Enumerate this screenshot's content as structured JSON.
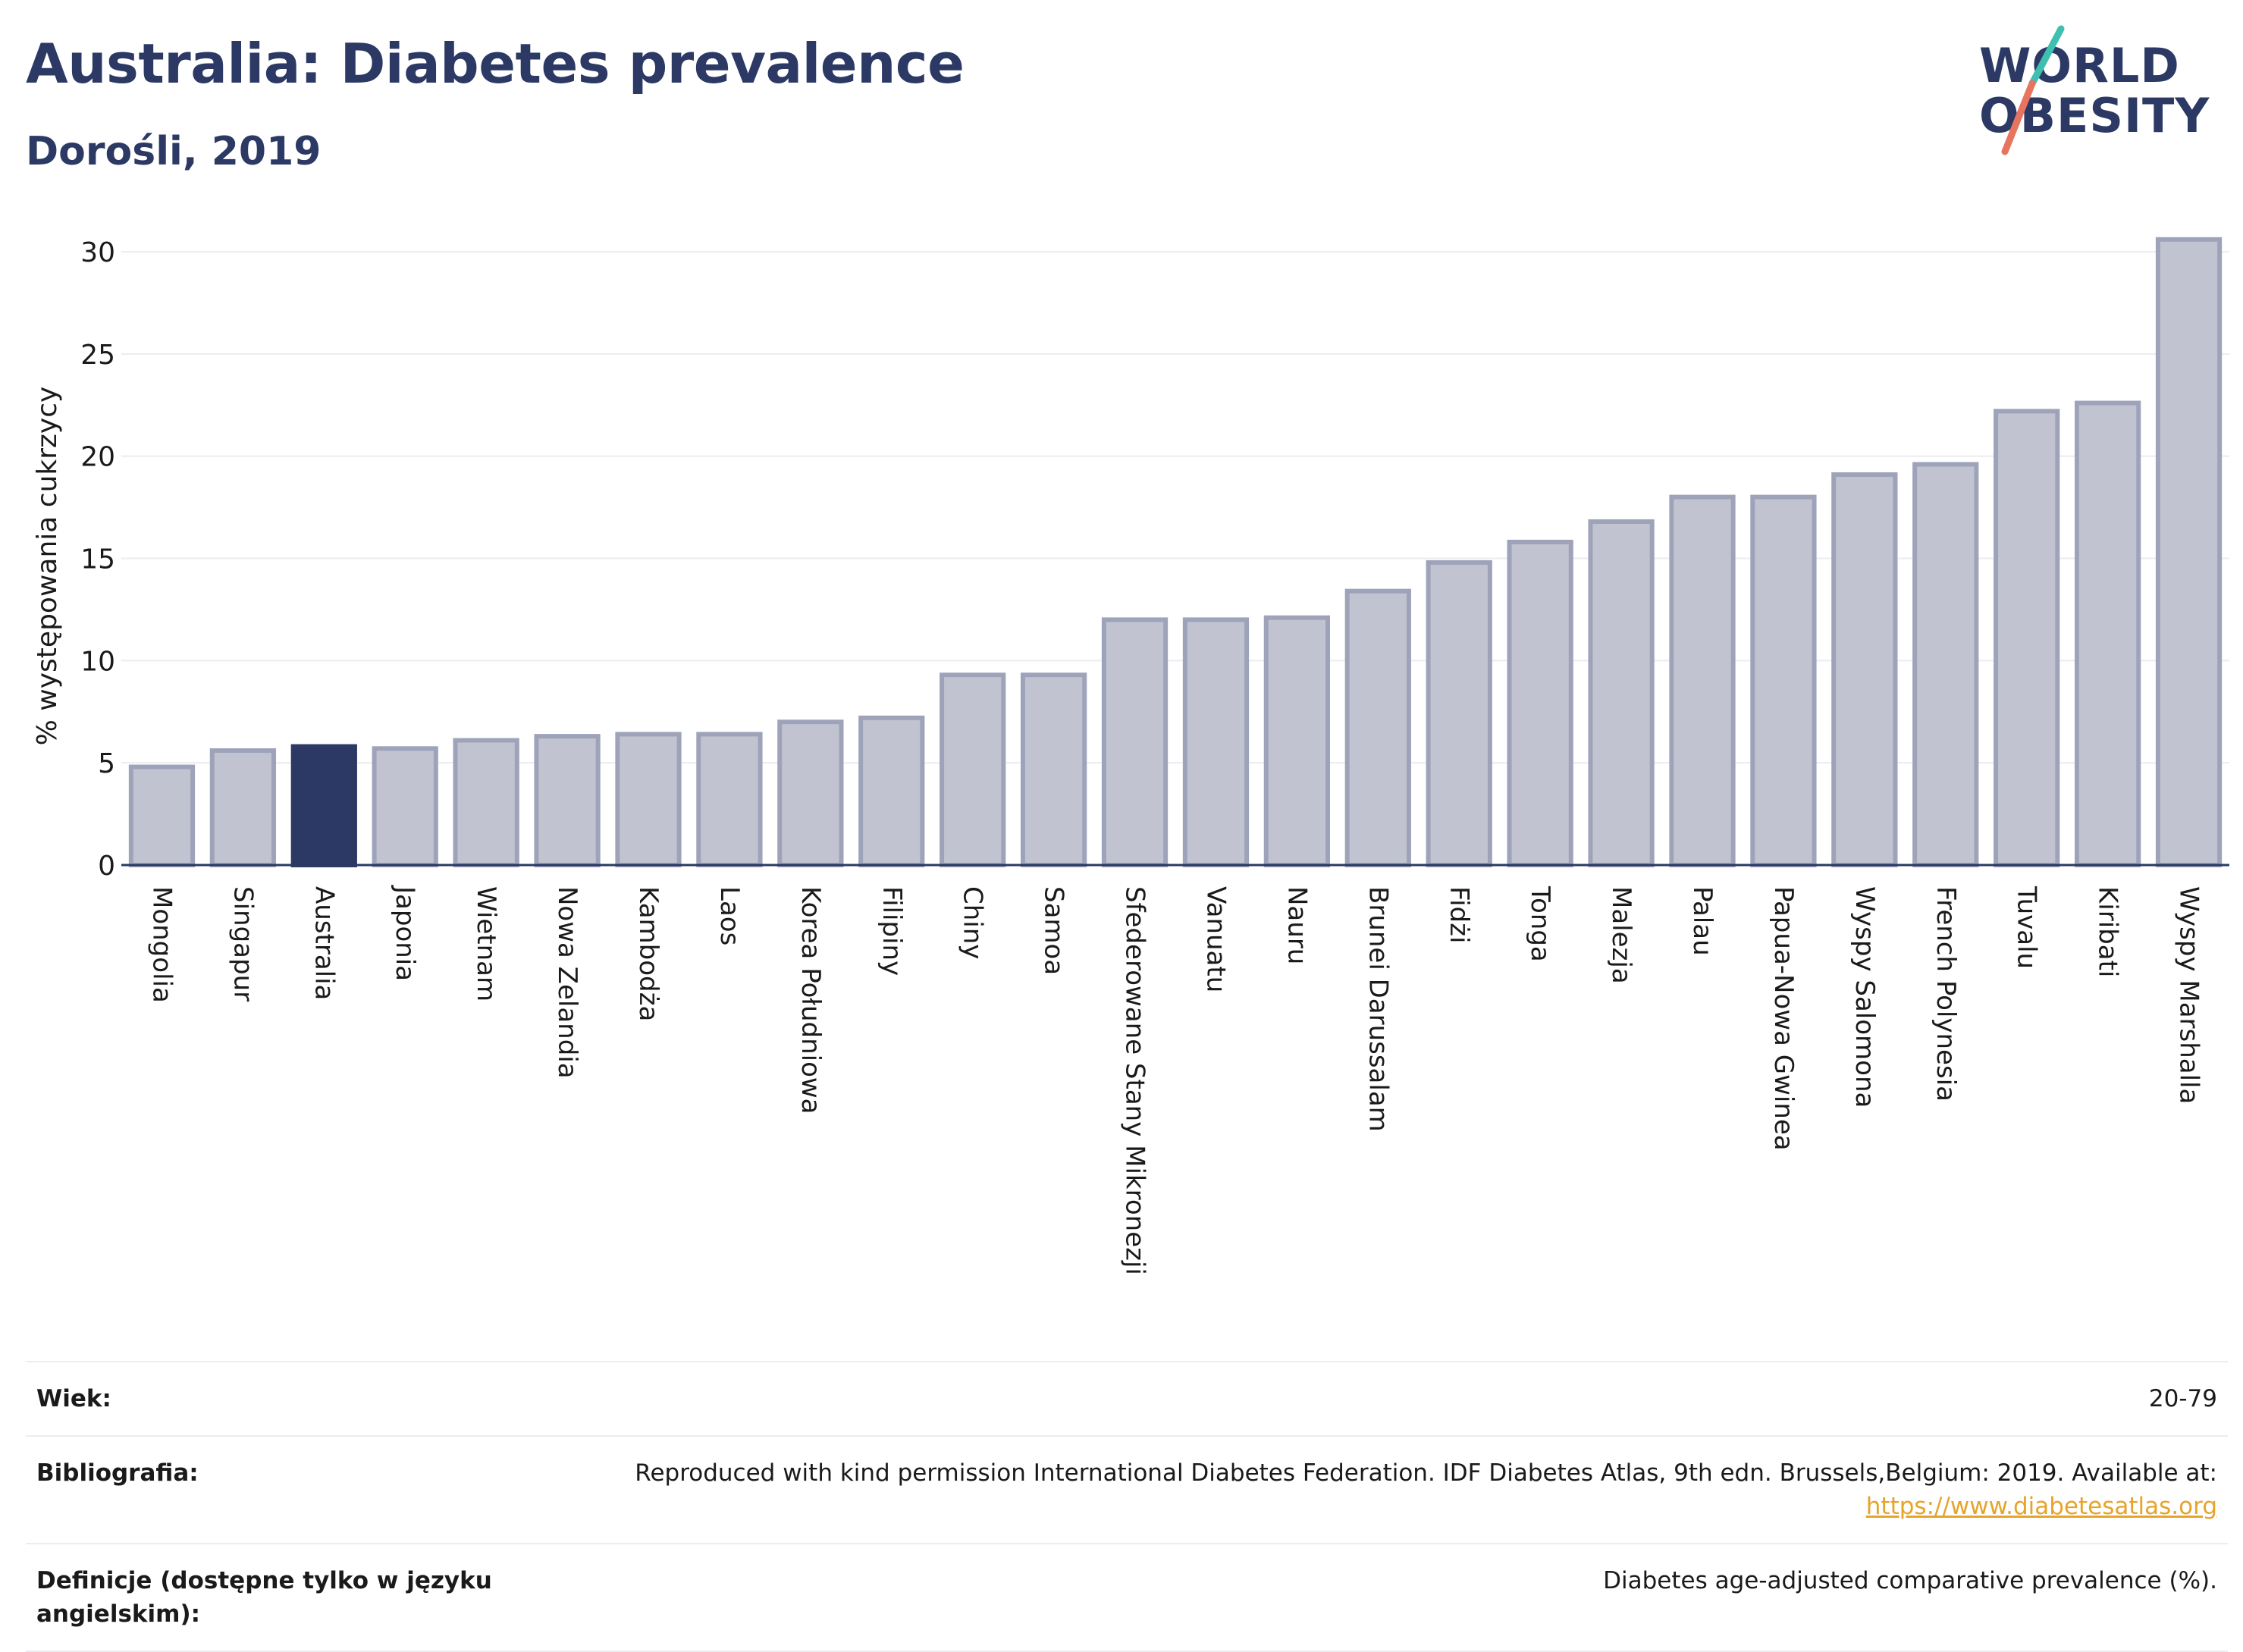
{
  "header": {
    "title": "Australia: Diabetes prevalence",
    "subtitle": "Dorośli, 2019"
  },
  "logo": {
    "line1": "WORLD",
    "line2": "OBESITY"
  },
  "colors": {
    "highlight": "#2b3964",
    "bar_fill": "#c1c4d0",
    "bar_stroke": "#9ea3ba",
    "grid": "#ececf1",
    "logo_teal": "#3fbfb0",
    "logo_coral": "#e8735e",
    "link": "#e6a42b"
  },
  "chart_data": {
    "type": "bar",
    "ylabel": "% występowania cukrzycy",
    "xlabel": "",
    "ylim": [
      0,
      32
    ],
    "yticks": [
      0,
      5,
      10,
      15,
      20,
      25,
      30
    ],
    "grid": true,
    "highlight": "Australia",
    "categories": [
      "Mongolia",
      "Singapur",
      "Australia",
      "Japonia",
      "Wietnam",
      "Nowa Zelandia",
      "Kambodża",
      "Laos",
      "Korea Południowa",
      "Filipiny",
      "Chiny",
      "Samoa",
      "Sfederowane Stany Mikronezji",
      "Vanuatu",
      "Nauru",
      "Brunei Darussalam",
      "Fidżi",
      "Tonga",
      "Malezja",
      "Palau",
      "Papua-Nowa Gwinea",
      "Wyspy Salomona",
      "French Polynesia",
      "Tuvalu",
      "Kiribati",
      "Wyspy Marshalla"
    ],
    "values": [
      4.8,
      5.6,
      5.8,
      5.7,
      6.1,
      6.3,
      6.4,
      6.4,
      7.0,
      7.2,
      9.3,
      9.3,
      12.0,
      12.0,
      12.1,
      13.4,
      14.8,
      15.8,
      16.8,
      18.0,
      18.0,
      19.1,
      19.6,
      22.2,
      22.6,
      30.6
    ]
  },
  "info": {
    "age_label": "Wiek:",
    "age_value": "20-79",
    "bib_label": "Bibliografia:",
    "bib_text": "Reproduced with kind permission International Diabetes Federation. IDF Diabetes Atlas, 9th edn. Brussels,Belgium: 2019. Available at:",
    "bib_link": "https://www.diabetesatlas.org",
    "def_label": "Definicje (dostępne tylko w języku angielskim):",
    "def_value": "Diabetes age-adjusted comparative prevalence (%)."
  }
}
